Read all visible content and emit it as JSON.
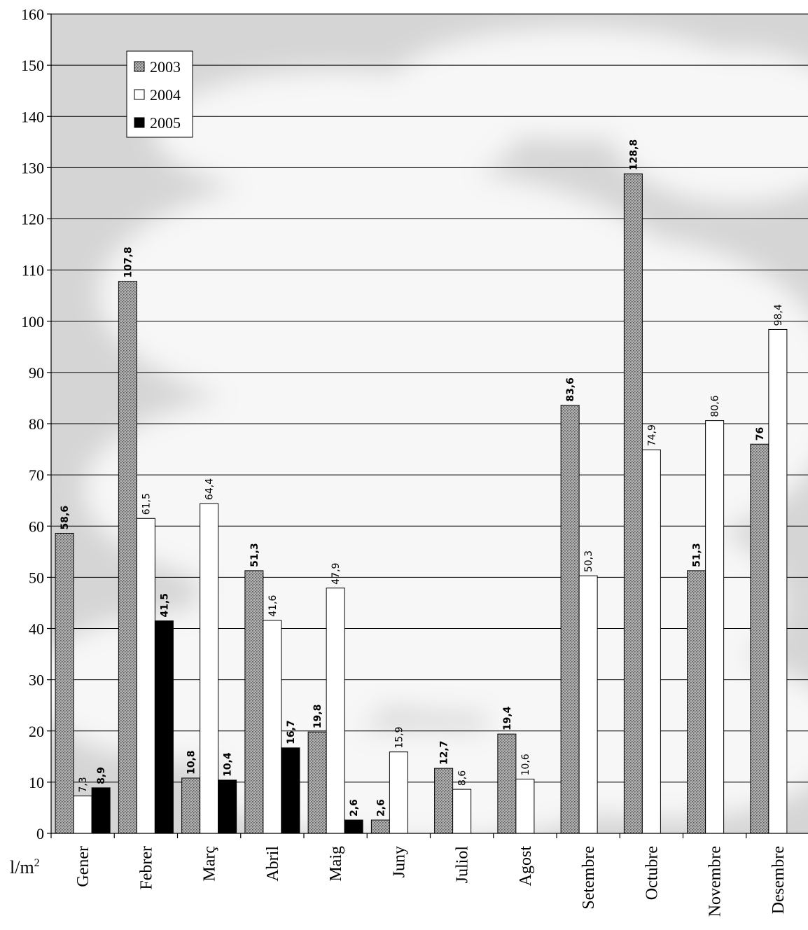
{
  "chart_data": {
    "type": "bar",
    "title": "",
    "xlabel": "",
    "ylabel": "l/m",
    "ylabel_superscript": "2",
    "ylim": [
      0,
      160
    ],
    "yticks": [
      "0",
      "10",
      "20",
      "30",
      "40",
      "50",
      "60",
      "70",
      "80",
      "90",
      "100",
      "110",
      "120",
      "130",
      "140",
      "150",
      "160"
    ],
    "grid": true,
    "legend_position": "top-left",
    "categories": [
      "Gener",
      "Febrer",
      "Març",
      "Abril",
      "Maig",
      "Juny",
      "Juliol",
      "Agost",
      "Setembre",
      "Octubre",
      "Novembre",
      "Desembre"
    ],
    "series": [
      {
        "name": "2003",
        "fill": "#9a9a9a",
        "pattern": "stipple",
        "label_bold": true,
        "values": [
          58.6,
          107.8,
          10.8,
          51.3,
          19.8,
          2.6,
          12.7,
          19.4,
          83.6,
          128.8,
          51.3,
          76
        ],
        "labels": [
          "58,6",
          "107,8",
          "10,8",
          "51,3",
          "19,8",
          "2,6",
          "12,7",
          "19,4",
          "83,6",
          "128,8",
          "51,3",
          "76"
        ]
      },
      {
        "name": "2004",
        "fill": "#ffffff",
        "label_bold": false,
        "values": [
          7.3,
          61.5,
          64.4,
          41.6,
          47.9,
          15.9,
          8.6,
          10.6,
          50.3,
          74.9,
          80.6,
          98.4
        ],
        "labels": [
          "7,3",
          "61,5",
          "64,4",
          "41,6",
          "47,9",
          "15,9",
          "8,6",
          "10,6",
          "50,3",
          "74,9",
          "80,6",
          "98,4"
        ]
      },
      {
        "name": "2005",
        "fill": "#000000",
        "label_bold": true,
        "values": [
          8.9,
          41.5,
          10.4,
          16.7,
          2.6,
          null,
          null,
          null,
          null,
          null,
          null,
          null
        ],
        "labels": [
          "8,9",
          "41,5",
          "10,4",
          "16,7",
          "2,6",
          "",
          "",
          "",
          "",
          "",
          "",
          ""
        ]
      }
    ],
    "background": "cloudy-sky",
    "colors": {
      "plot_bg": "#d9d9d9",
      "cloud": "#f6f6f6",
      "grid": "#000000"
    }
  }
}
